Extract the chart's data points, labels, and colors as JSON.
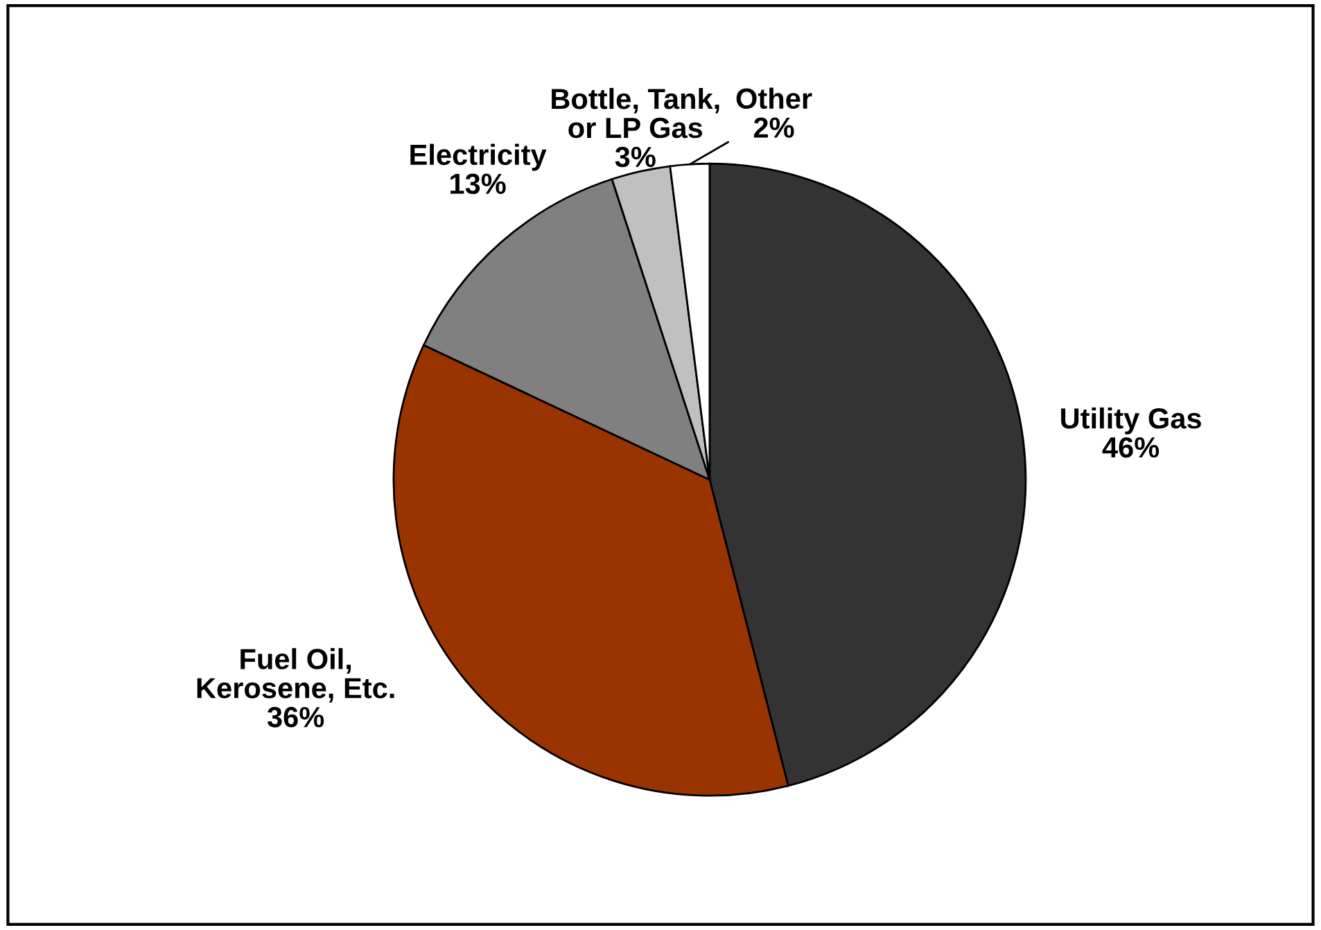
{
  "chart_data": {
    "type": "pie",
    "categories": [
      "Utility Gas",
      "Fuel Oil,\nKerosene, Etc.",
      "Electricity",
      "Bottle, Tank,\nor LP Gas",
      "Other"
    ],
    "values": [
      46,
      36,
      13,
      3,
      2
    ],
    "colors": [
      "#333333",
      "#993300",
      "#808080",
      "#c0c0c0",
      "#ffffff"
    ],
    "value_labels": [
      "46%",
      "36%",
      "13%",
      "3%",
      "2%"
    ]
  }
}
